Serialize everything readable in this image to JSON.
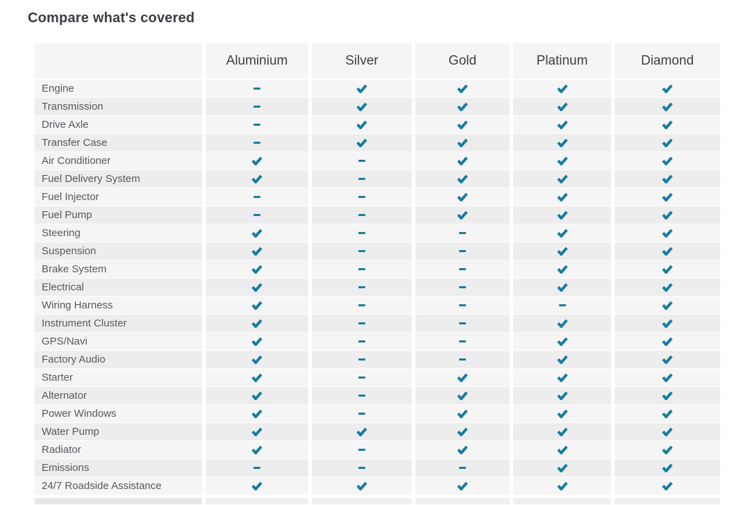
{
  "title": "Compare what's covered",
  "table": {
    "columns": [
      "Aluminium",
      "Silver",
      "Gold",
      "Platinum",
      "Diamond"
    ],
    "icons": {
      "included": "check-icon",
      "excluded": "dash-icon"
    },
    "rows": [
      {
        "label": "Engine",
        "coverage": [
          "excluded",
          "included",
          "included",
          "included",
          "included"
        ]
      },
      {
        "label": "Transmission",
        "coverage": [
          "excluded",
          "included",
          "included",
          "included",
          "included"
        ]
      },
      {
        "label": "Drive Axle",
        "coverage": [
          "excluded",
          "included",
          "included",
          "included",
          "included"
        ]
      },
      {
        "label": "Transfer Case",
        "coverage": [
          "excluded",
          "included",
          "included",
          "included",
          "included"
        ]
      },
      {
        "label": "Air Conditioner",
        "coverage": [
          "included",
          "excluded",
          "included",
          "included",
          "included"
        ]
      },
      {
        "label": "Fuel Delivery System",
        "coverage": [
          "included",
          "excluded",
          "included",
          "included",
          "included"
        ]
      },
      {
        "label": "Fuel Injector",
        "coverage": [
          "excluded",
          "excluded",
          "included",
          "included",
          "included"
        ]
      },
      {
        "label": "Fuel Pump",
        "coverage": [
          "excluded",
          "excluded",
          "included",
          "included",
          "included"
        ]
      },
      {
        "label": "Steering",
        "coverage": [
          "included",
          "excluded",
          "excluded",
          "included",
          "included"
        ]
      },
      {
        "label": "Suspension",
        "coverage": [
          "included",
          "excluded",
          "excluded",
          "included",
          "included"
        ]
      },
      {
        "label": "Brake System",
        "coverage": [
          "included",
          "excluded",
          "excluded",
          "included",
          "included"
        ]
      },
      {
        "label": "Electrical",
        "coverage": [
          "included",
          "excluded",
          "excluded",
          "included",
          "included"
        ]
      },
      {
        "label": "Wiring Harness",
        "coverage": [
          "included",
          "excluded",
          "excluded",
          "excluded",
          "included"
        ]
      },
      {
        "label": "Instrument Cluster",
        "coverage": [
          "included",
          "excluded",
          "excluded",
          "included",
          "included"
        ]
      },
      {
        "label": "GPS/Navi",
        "coverage": [
          "included",
          "excluded",
          "excluded",
          "included",
          "included"
        ]
      },
      {
        "label": "Factory Audio",
        "coverage": [
          "included",
          "excluded",
          "excluded",
          "included",
          "included"
        ]
      },
      {
        "label": "Starter",
        "coverage": [
          "included",
          "excluded",
          "included",
          "included",
          "included"
        ]
      },
      {
        "label": "Alternator",
        "coverage": [
          "included",
          "excluded",
          "included",
          "included",
          "included"
        ]
      },
      {
        "label": "Power Windows",
        "coverage": [
          "included",
          "excluded",
          "included",
          "included",
          "included"
        ]
      },
      {
        "label": "Water Pump",
        "coverage": [
          "included",
          "included",
          "included",
          "included",
          "included"
        ]
      },
      {
        "label": "Radiator",
        "coverage": [
          "included",
          "excluded",
          "included",
          "included",
          "included"
        ]
      },
      {
        "label": "Emissions",
        "coverage": [
          "excluded",
          "excluded",
          "excluded",
          "included",
          "included"
        ]
      },
      {
        "label": "24/7 Roadside Assistance",
        "coverage": [
          "included",
          "included",
          "included",
          "included",
          "included"
        ]
      }
    ]
  },
  "colors": {
    "accent_teal": "#177CA0",
    "row_light": "#f5f5f6",
    "row_dark": "#ededee",
    "header_bg": "#f5f5f6",
    "header_text": "#3c4043",
    "title_text": "#3a3d40",
    "label_text": "#55585c",
    "partial_row_label_bg": "#e7e7e9",
    "partial_row_cell_bg": "#f0f0f1"
  }
}
